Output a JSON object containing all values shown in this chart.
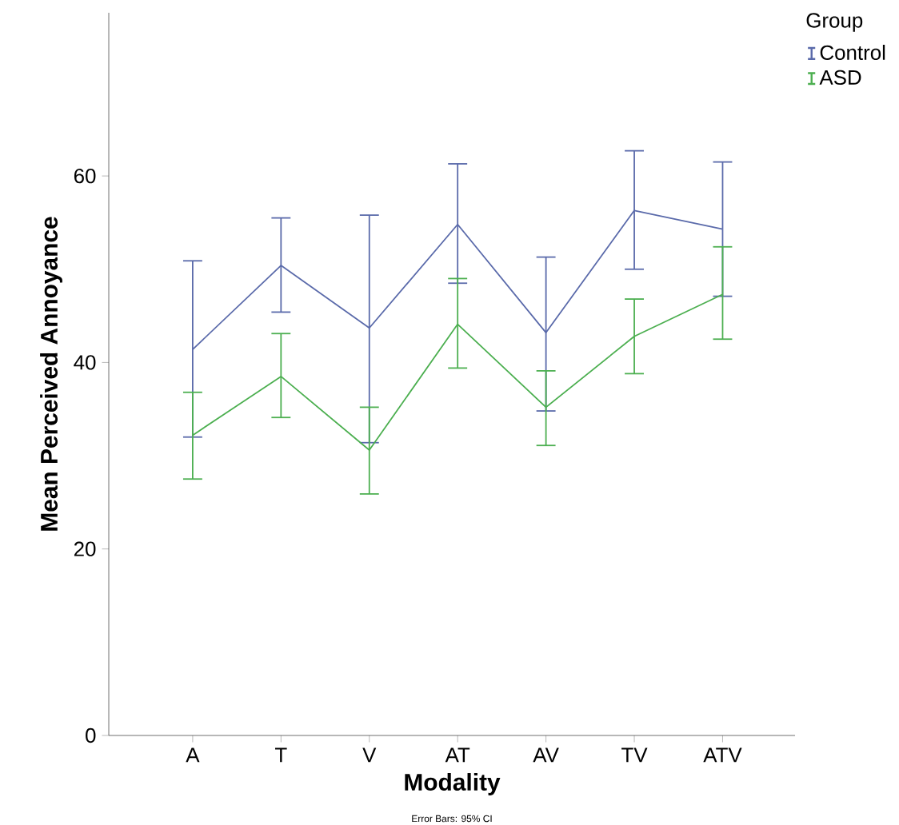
{
  "chart_data": {
    "type": "line",
    "xlabel": "Modality",
    "ylabel": "Mean Perceived Annoyance",
    "legend_title": "Group",
    "categories": [
      "A",
      "T",
      "V",
      "AT",
      "AV",
      "TV",
      "ATV"
    ],
    "series": [
      {
        "name": "Control",
        "color": "#5a6aaa",
        "values": [
          41.4,
          50.4,
          43.7,
          54.8,
          43.2,
          56.3,
          54.3
        ],
        "errors": [
          [
            32.0,
            50.9
          ],
          [
            45.4,
            55.5
          ],
          [
            31.4,
            55.8
          ],
          [
            48.5,
            61.3
          ],
          [
            34.8,
            51.3
          ],
          [
            50.0,
            62.7
          ],
          [
            47.1,
            61.5
          ]
        ]
      },
      {
        "name": "ASD",
        "color": "#4caf50",
        "values": [
          32.2,
          38.5,
          30.6,
          44.1,
          35.2,
          42.8,
          47.3
        ],
        "errors": [
          [
            27.5,
            36.8
          ],
          [
            34.1,
            43.1
          ],
          [
            25.9,
            35.2
          ],
          [
            39.4,
            49.0
          ],
          [
            31.1,
            39.1
          ],
          [
            38.8,
            46.8
          ],
          [
            42.5,
            52.4
          ]
        ]
      }
    ],
    "ylim": [
      0,
      77.5
    ],
    "yticks": [
      0,
      20,
      40,
      60
    ],
    "grid": false,
    "legend": "top right",
    "marker": "none",
    "line_style": "solid",
    "annotations": [
      "Error Bars: 95% CI"
    ]
  }
}
